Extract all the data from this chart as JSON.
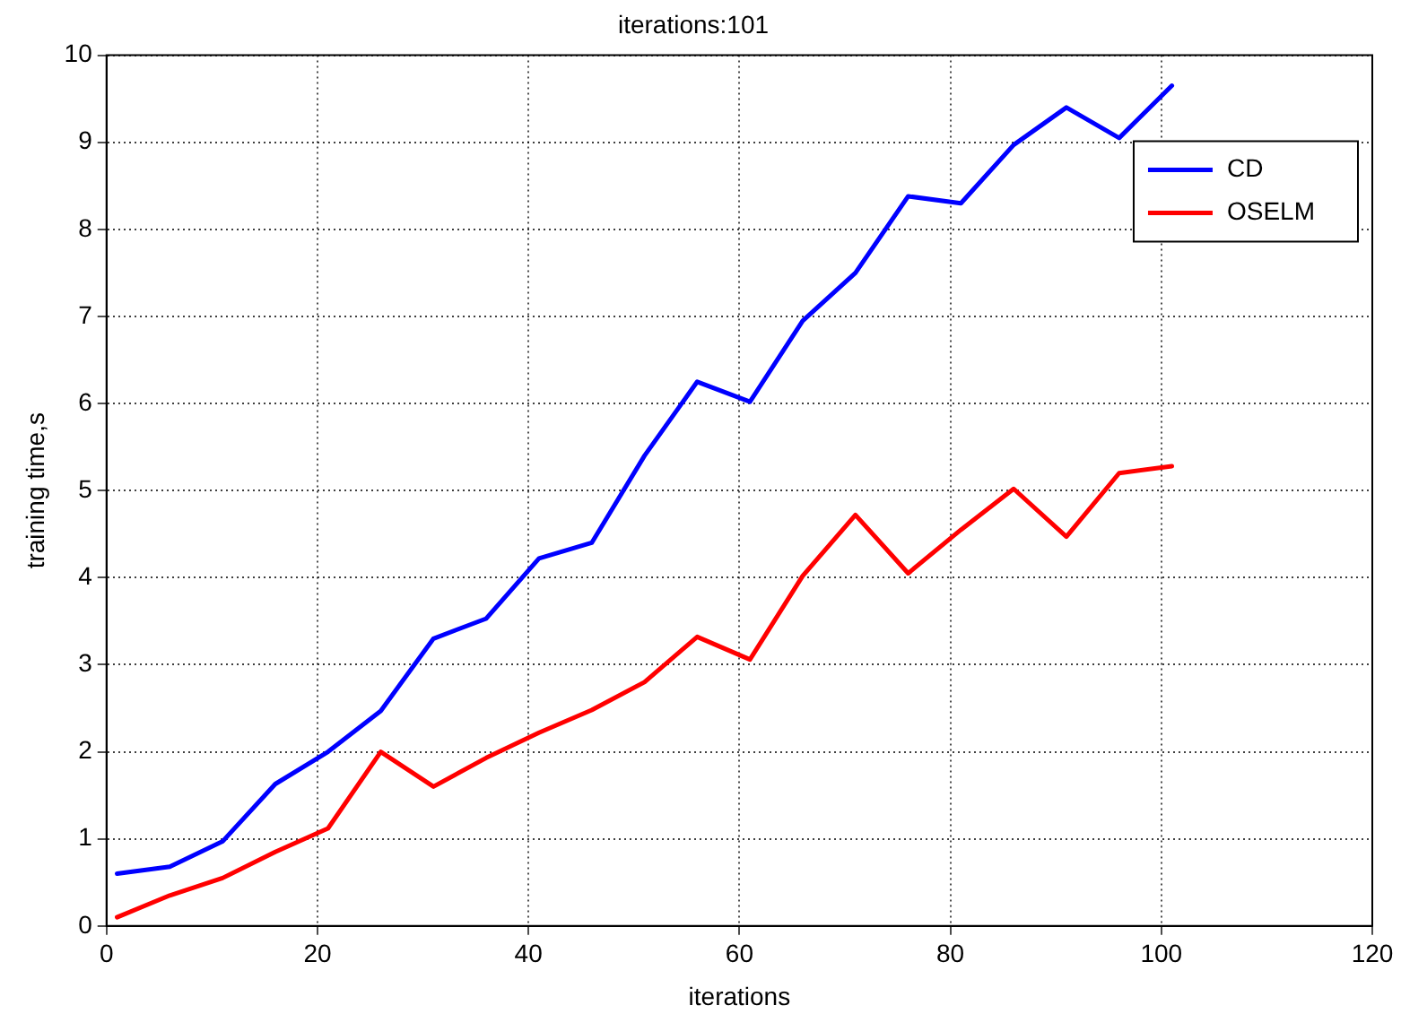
{
  "chart_data": {
    "type": "line",
    "title": "iterations:101",
    "xlabel": "iterations",
    "ylabel": "training time,s",
    "x": [
      1,
      6,
      11,
      16,
      21,
      26,
      31,
      36,
      41,
      46,
      51,
      56,
      61,
      66,
      71,
      76,
      81,
      86,
      91,
      96,
      101
    ],
    "series": [
      {
        "name": "CD",
        "color": "#0000ff",
        "values": [
          0.6,
          0.68,
          0.97,
          1.63,
          2.0,
          2.47,
          3.3,
          3.53,
          4.22,
          4.4,
          5.4,
          6.25,
          6.02,
          6.95,
          7.5,
          8.38,
          8.3,
          8.97,
          9.4,
          9.05,
          9.65
        ]
      },
      {
        "name": "OSELM",
        "color": "#ff0000",
        "values": [
          0.1,
          0.35,
          0.55,
          0.85,
          1.12,
          2.0,
          1.6,
          1.93,
          2.22,
          2.48,
          2.8,
          3.32,
          3.06,
          4.02,
          4.72,
          4.05,
          4.55,
          5.02,
          4.47,
          5.2,
          5.28
        ]
      }
    ],
    "xlim": [
      0,
      120
    ],
    "xticks": [
      0,
      20,
      40,
      60,
      80,
      100,
      120
    ],
    "ylim": [
      0,
      10
    ],
    "yticks": [
      0,
      1,
      2,
      3,
      4,
      5,
      6,
      7,
      8,
      9,
      10
    ],
    "grid": true,
    "legend": "top right",
    "marker": "none",
    "line_style": "solid"
  }
}
